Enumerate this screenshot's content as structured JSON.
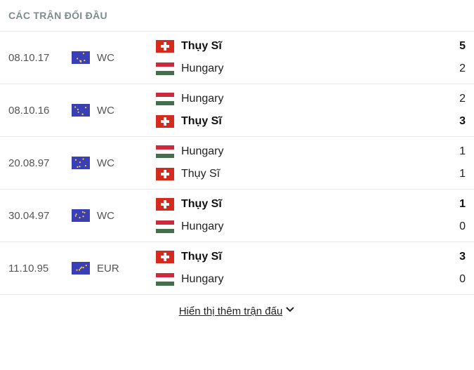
{
  "header": {
    "title": "CÁC TRẬN ĐỐI ĐẦU"
  },
  "footer": {
    "show_more": "Hiển thị thêm trận đấu"
  },
  "colors": {
    "eu_blue": "#3b3fb5",
    "eu_star": "#f7d02c",
    "ch_red": "#d52b1e",
    "ch_white": "#ffffff",
    "hu_red": "#cd2a3e",
    "hu_white": "#ffffff",
    "hu_green": "#436f4d"
  },
  "matches": [
    {
      "date": "08.10.17",
      "comp": "WC",
      "home": "Thụy Sĩ",
      "home_flag": "ch",
      "home_score": 5,
      "away": "Hungary",
      "away_flag": "hu",
      "away_score": 2,
      "winner": "home"
    },
    {
      "date": "08.10.16",
      "comp": "WC",
      "home": "Hungary",
      "home_flag": "hu",
      "home_score": 2,
      "away": "Thụy Sĩ",
      "away_flag": "ch",
      "away_score": 3,
      "winner": "away"
    },
    {
      "date": "20.08.97",
      "comp": "WC",
      "home": "Hungary",
      "home_flag": "hu",
      "home_score": 1,
      "away": "Thụy Sĩ",
      "away_flag": "ch",
      "away_score": 1,
      "winner": "draw"
    },
    {
      "date": "30.04.97",
      "comp": "WC",
      "home": "Thụy Sĩ",
      "home_flag": "ch",
      "home_score": 1,
      "away": "Hungary",
      "away_flag": "hu",
      "away_score": 0,
      "winner": "home"
    },
    {
      "date": "11.10.95",
      "comp": "EUR",
      "home": "Thụy Sĩ",
      "home_flag": "ch",
      "home_score": 3,
      "away": "Hungary",
      "away_flag": "hu",
      "away_score": 0,
      "winner": "home"
    }
  ]
}
